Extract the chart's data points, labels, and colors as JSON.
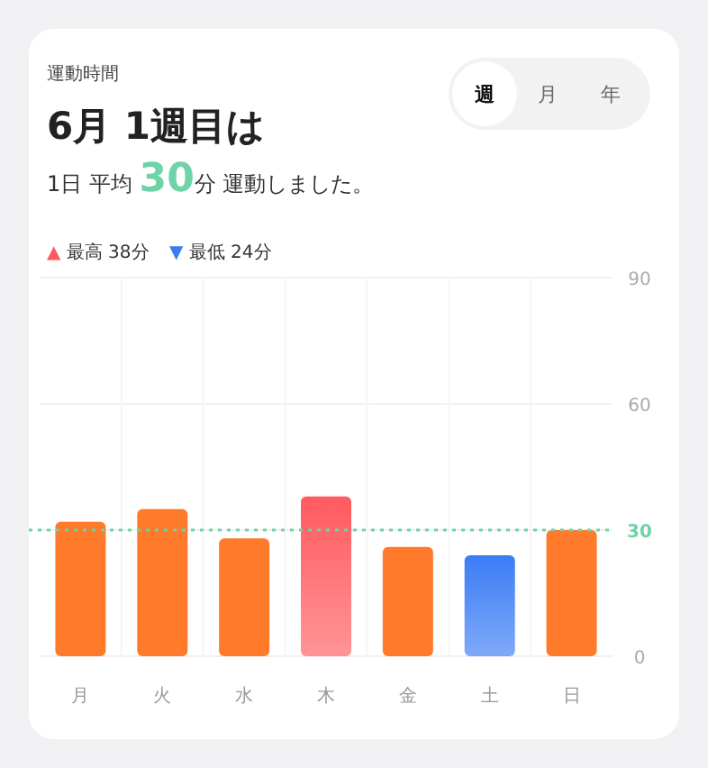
{
  "chart_data": {
    "type": "bar",
    "title": "6月 1週目は",
    "subtitle": "1日 平均 30分 運動しました。",
    "annotations": [
      "運動時間",
      "週",
      "月",
      "年",
      "▲ 最高 38分",
      "▼ 最低 24分"
    ],
    "categories": [
      "月",
      "火",
      "水",
      "木",
      "金",
      "土",
      "日"
    ],
    "values": [
      32,
      35,
      28,
      38,
      26,
      24,
      30
    ],
    "colors": [
      "#ff7a2b",
      "#ff7a2b",
      "#ff7a2b",
      "#ff5a5f",
      "#ff7a2b",
      "#3b7cf5",
      "#ff7a2b"
    ],
    "ylim": [
      0,
      90
    ],
    "yticks": [
      0,
      30,
      60,
      90
    ],
    "grid": true,
    "ref_lines": [
      {
        "axis": "y",
        "value": 30,
        "color": "#6fd3a8",
        "line_style": "dotted"
      }
    ]
  }
}
